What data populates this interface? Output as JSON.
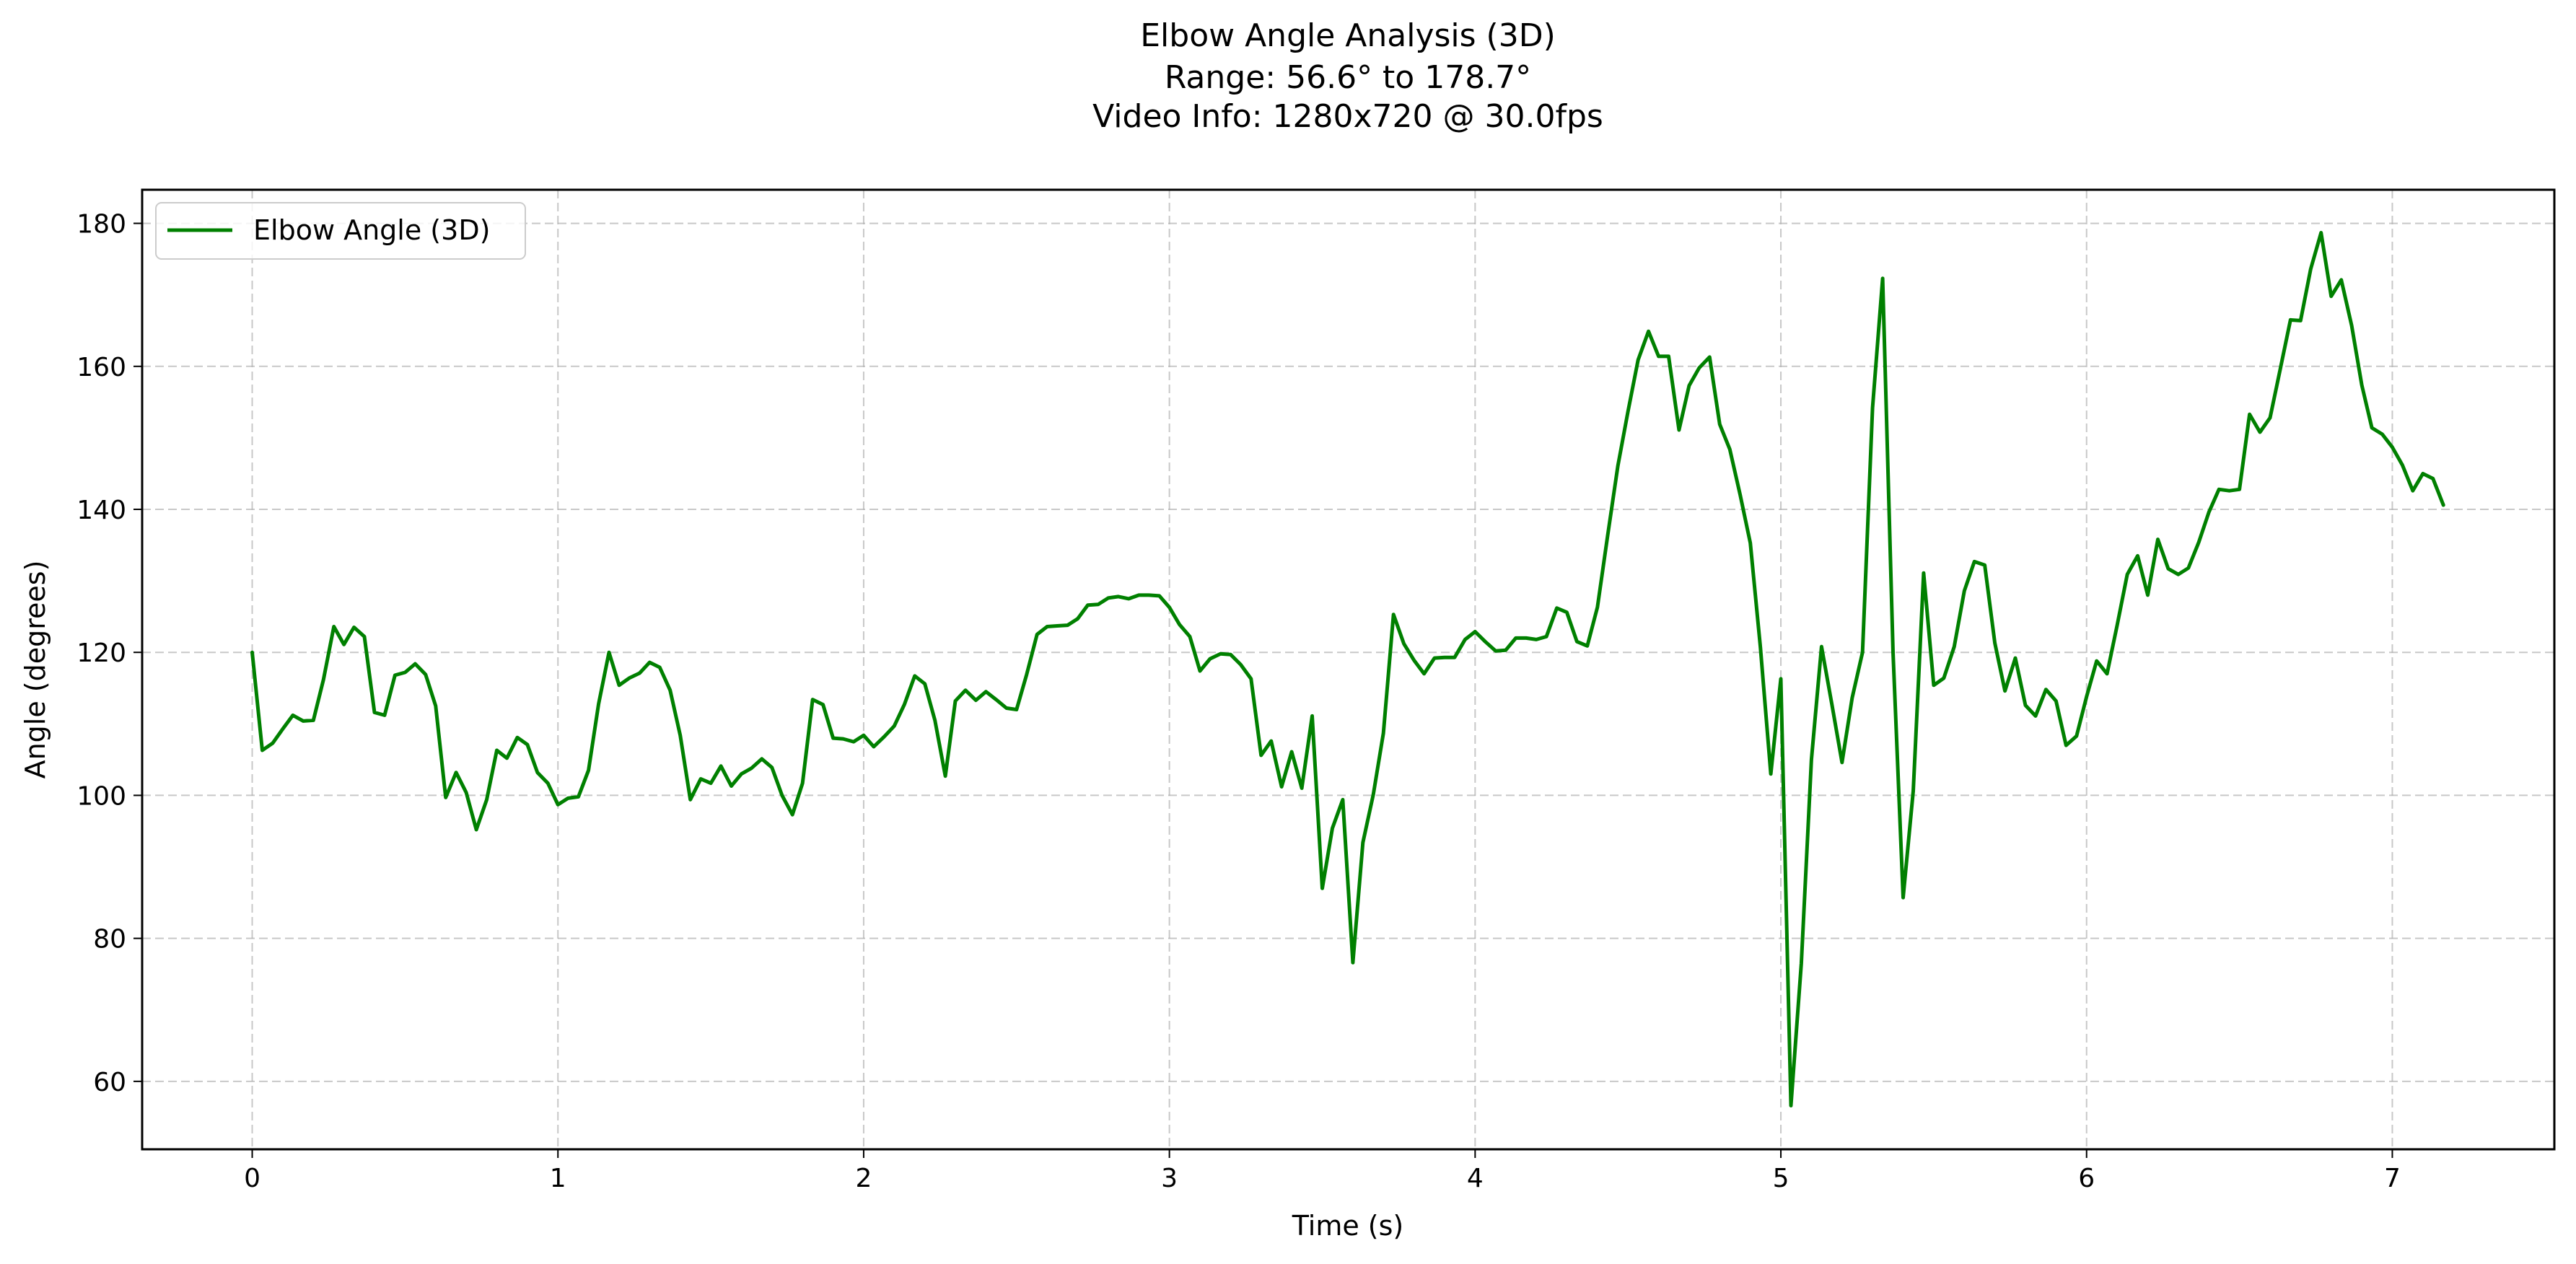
{
  "chart_data": {
    "type": "line",
    "title": "Elbow Angle Analysis (3D)",
    "subtitle_lines": [
      "Range: 56.6° to 178.7°",
      "Video Info: 1280x720 @ 30.0fps"
    ],
    "xlabel": "Time (s)",
    "ylabel": "Angle (degrees)",
    "xlim": [
      -0.36,
      7.53
    ],
    "ylim": [
      50.5,
      184.7
    ],
    "xticks": [
      0,
      1,
      2,
      3,
      4,
      5,
      6,
      7
    ],
    "yticks": [
      60,
      80,
      100,
      120,
      140,
      160,
      180
    ],
    "xtick_labels": [
      "0",
      "1",
      "2",
      "3",
      "4",
      "5",
      "6",
      "7"
    ],
    "ytick_labels": [
      "60",
      "80",
      "100",
      "120",
      "140",
      "160",
      "180"
    ],
    "grid": true,
    "legend_position": "upper-left",
    "series": [
      {
        "name": "Elbow Angle (3D)",
        "color": "#008000",
        "x": [
          0.0,
          0.033,
          0.067,
          0.1,
          0.133,
          0.167,
          0.2,
          0.233,
          0.267,
          0.3,
          0.333,
          0.367,
          0.4,
          0.433,
          0.467,
          0.5,
          0.533,
          0.567,
          0.6,
          0.633,
          0.667,
          0.7,
          0.733,
          0.767,
          0.8,
          0.833,
          0.867,
          0.9,
          0.933,
          0.967,
          1.0,
          1.033,
          1.067,
          1.1,
          1.133,
          1.167,
          1.2,
          1.233,
          1.267,
          1.3,
          1.333,
          1.367,
          1.4,
          1.433,
          1.467,
          1.5,
          1.533,
          1.567,
          1.6,
          1.633,
          1.667,
          1.7,
          1.733,
          1.767,
          1.8,
          1.833,
          1.867,
          1.9,
          1.933,
          1.967,
          2.0,
          2.033,
          2.067,
          2.1,
          2.133,
          2.167,
          2.2,
          2.233,
          2.267,
          2.3,
          2.333,
          2.367,
          2.4,
          2.433,
          2.467,
          2.5,
          2.533,
          2.567,
          2.6,
          2.633,
          2.667,
          2.7,
          2.733,
          2.767,
          2.8,
          2.833,
          2.867,
          2.9,
          2.933,
          2.967,
          3.0,
          3.033,
          3.067,
          3.1,
          3.133,
          3.167,
          3.2,
          3.233,
          3.267,
          3.3,
          3.333,
          3.367,
          3.4,
          3.433,
          3.467,
          3.5,
          3.533,
          3.567,
          3.6,
          3.633,
          3.667,
          3.7,
          3.733,
          3.767,
          3.8,
          3.833,
          3.867,
          3.9,
          3.933,
          3.967,
          4.0,
          4.033,
          4.067,
          4.1,
          4.133,
          4.167,
          4.2,
          4.233,
          4.267,
          4.3,
          4.333,
          4.367,
          4.4,
          4.433,
          4.467,
          4.5,
          4.533,
          4.567,
          4.6,
          4.633,
          4.667,
          4.7,
          4.733,
          4.767,
          4.8,
          4.833,
          4.867,
          4.9,
          4.933,
          4.967,
          5.0,
          5.033,
          5.067,
          5.1,
          5.133,
          5.167,
          5.2,
          5.233,
          5.267,
          5.3,
          5.333,
          5.367,
          5.4,
          5.433,
          5.467,
          5.5,
          5.533,
          5.567,
          5.6,
          5.633,
          5.667,
          5.7,
          5.733,
          5.767,
          5.8,
          5.833,
          5.867,
          5.9,
          5.933,
          5.967,
          6.0,
          6.033,
          6.067,
          6.1,
          6.133,
          6.167,
          6.2,
          6.233,
          6.267,
          6.3,
          6.333,
          6.367,
          6.4,
          6.433,
          6.467,
          6.5,
          6.533,
          6.567,
          6.6,
          6.633,
          6.667,
          6.7,
          6.733,
          6.767,
          6.8,
          6.833,
          6.867,
          6.9,
          6.933,
          6.967,
          7.0,
          7.033,
          7.067,
          7.1,
          7.133,
          7.167
        ],
        "y": [
          120,
          106.3,
          107.3,
          109.3,
          111.2,
          110.4,
          110.5,
          116.2,
          123.6,
          121.1,
          123.5,
          122.2,
          111.6,
          111.2,
          116.8,
          117.2,
          118.4,
          116.9,
          112.5,
          99.7,
          103.2,
          100.4,
          95.2,
          99.4,
          106.3,
          105.2,
          108.1,
          107.1,
          103.2,
          101.7,
          98.7,
          99.6,
          99.8,
          103.5,
          112.8,
          120.0,
          115.4,
          116.4,
          117.1,
          118.6,
          117.9,
          114.7,
          108.4,
          99.4,
          102.3,
          101.7,
          104.1,
          101.3,
          103.0,
          103.8,
          105.1,
          103.9,
          100.0,
          97.3,
          101.7,
          113.4,
          112.7,
          108.0,
          107.9,
          107.5,
          108.4,
          106.8,
          108.2,
          109.7,
          112.7,
          116.7,
          115.6,
          110.5,
          102.7,
          113.2,
          114.7,
          113.3,
          114.5,
          113.4,
          112.2,
          112.0,
          116.9,
          122.5,
          123.6,
          123.7,
          123.8,
          124.7,
          126.6,
          126.7,
          127.6,
          127.8,
          127.5,
          128.0,
          128.0,
          127.9,
          126.3,
          123.9,
          122.2,
          117.4,
          119.1,
          119.8,
          119.7,
          118.3,
          116.3,
          105.6,
          107.6,
          101.2,
          106.1,
          101.0,
          111.1,
          87.0,
          95.4,
          99.4,
          76.6,
          93.4,
          100.1,
          108.7,
          125.3,
          121.2,
          118.9,
          117.0,
          119.2,
          119.3,
          119.3,
          121.8,
          122.9,
          121.5,
          120.2,
          120.3,
          122.0,
          122.0,
          121.8,
          122.2,
          126.2,
          125.6,
          121.5,
          120.9,
          126.3,
          136.2,
          146.1,
          153.7,
          160.9,
          164.9,
          161.4,
          161.4,
          151.1,
          157.3,
          159.8,
          161.3,
          151.9,
          148.4,
          142.0,
          135.3,
          120.8,
          103.0,
          116.3,
          56.6,
          76.5,
          105.0,
          120.8,
          112.7,
          104.6,
          113.6,
          120.0,
          154.2,
          172.3,
          120.0,
          85.7,
          100.6,
          131.1,
          115.4,
          116.4,
          120.8,
          128.6,
          132.7,
          132.2,
          121.3,
          114.6,
          119.2,
          112.6,
          111.1,
          114.8,
          113.2,
          107.0,
          108.3,
          113.8,
          118.8,
          117.0,
          123.8,
          130.9,
          133.5,
          128.0,
          135.8,
          131.7,
          130.9,
          131.8,
          135.4,
          139.6,
          142.8,
          142.6,
          142.8,
          153.3,
          150.8,
          152.8,
          159.5,
          166.5,
          166.4,
          173.6,
          178.7,
          169.8,
          172.1,
          165.7,
          157.4,
          151.4,
          150.5,
          148.7,
          146.2,
          142.6,
          145.0,
          144.3,
          140.6
        ]
      }
    ]
  }
}
